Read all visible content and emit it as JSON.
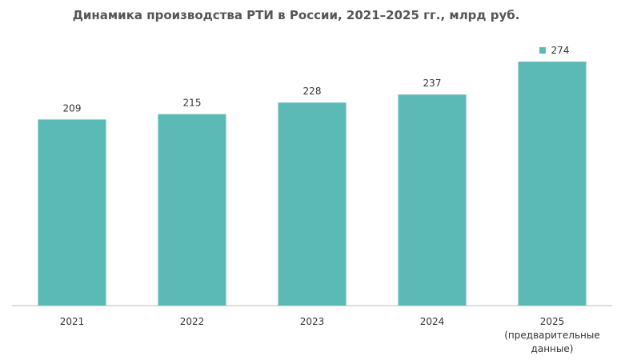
{
  "chart_data": {
    "type": "bar",
    "title": "Динамика производства РТИ в России, 2021–2025 гг., млрд руб.",
    "categories": [
      "2021",
      "2022",
      "2023",
      "2024",
      "2025\n(предварительные\nданные)"
    ],
    "values": [
      209,
      215,
      228,
      237,
      274
    ],
    "color": "#5bbab5",
    "ylim": [
      0,
      274
    ]
  }
}
